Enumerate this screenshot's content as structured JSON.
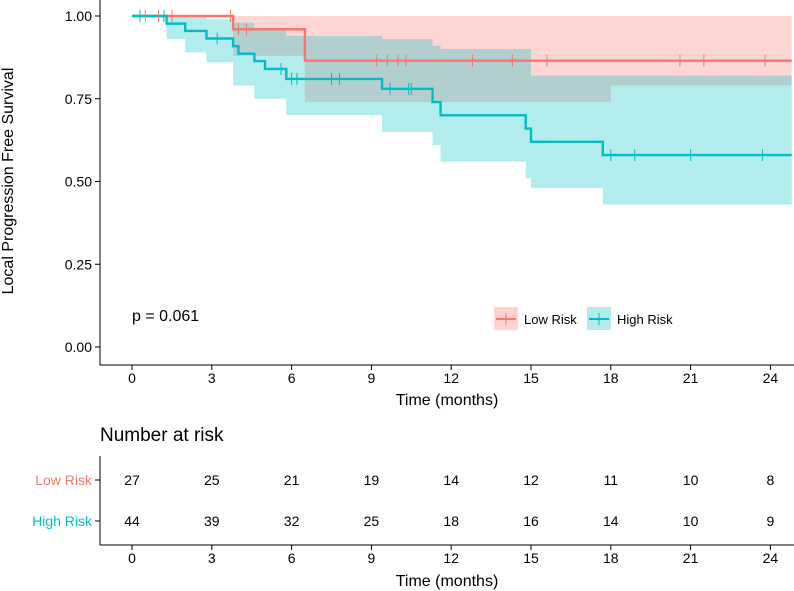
{
  "chart_data": [
    {
      "type": "line",
      "subtype": "kaplan-meier",
      "title": "",
      "xlabel": "Time (months)",
      "ylabel": "Local Progression Free Survival",
      "xlim": [
        0,
        24
      ],
      "ylim": [
        0,
        1
      ],
      "xticks": [
        "0",
        "3",
        "6",
        "9",
        "12",
        "15",
        "18",
        "21",
        "24"
      ],
      "yticks": [
        "0.00",
        "0.25",
        "0.50",
        "0.75",
        "1.00"
      ],
      "grid": false,
      "legend_position": "bottom-right",
      "annotation": "p = 0.061",
      "series": [
        {
          "name": "Low Risk",
          "color": "#F8766D",
          "band_color": "#FFD1CF",
          "steps": [
            [
              0,
              1.0
            ],
            [
              3.8,
              0.96
            ],
            [
              6.5,
              0.865
            ],
            [
              24.8,
              0.865
            ]
          ],
          "ci_upper": [
            [
              0,
              1.0
            ],
            [
              24.8,
              1.0
            ]
          ],
          "ci_lower": [
            [
              0,
              1.0
            ],
            [
              3.8,
              0.88
            ],
            [
              6.5,
              0.74
            ],
            [
              15,
              0.74
            ],
            [
              18,
              0.79
            ],
            [
              24.8,
              0.79
            ]
          ],
          "censor_times": [
            0.5,
            1.0,
            1.5,
            3.7,
            4.0,
            4.3,
            9.2,
            9.6,
            10.0,
            10.3,
            12.8,
            14.3,
            15.6,
            20.6,
            21.5,
            23.8
          ]
        },
        {
          "name": "High Risk",
          "color": "#00BFC4",
          "band_color": "#B2EBEC",
          "steps": [
            [
              0,
              1.0
            ],
            [
              1.3,
              0.977
            ],
            [
              2.0,
              0.955
            ],
            [
              2.8,
              0.932
            ],
            [
              3.8,
              0.909
            ],
            [
              4.0,
              0.886
            ],
            [
              4.6,
              0.864
            ],
            [
              5.0,
              0.84
            ],
            [
              5.8,
              0.81
            ],
            [
              9.4,
              0.78
            ],
            [
              11.3,
              0.74
            ],
            [
              11.6,
              0.7
            ],
            [
              14.8,
              0.66
            ],
            [
              15.0,
              0.62
            ],
            [
              17.7,
              0.58
            ],
            [
              24.8,
              0.58
            ]
          ],
          "ci_upper": [
            [
              0,
              1.0
            ],
            [
              2.0,
              1.0
            ],
            [
              2.8,
              0.99
            ],
            [
              3.8,
              0.98
            ],
            [
              4.6,
              0.96
            ],
            [
              5.8,
              0.94
            ],
            [
              9.4,
              0.93
            ],
            [
              11.3,
              0.91
            ],
            [
              11.6,
              0.9
            ],
            [
              15.0,
              0.82
            ],
            [
              24.8,
              0.82
            ]
          ],
          "ci_lower": [
            [
              0,
              1.0
            ],
            [
              1.3,
              0.93
            ],
            [
              2.0,
              0.89
            ],
            [
              2.8,
              0.86
            ],
            [
              3.8,
              0.79
            ],
            [
              4.6,
              0.75
            ],
            [
              5.8,
              0.7
            ],
            [
              9.4,
              0.65
            ],
            [
              11.3,
              0.61
            ],
            [
              11.6,
              0.56
            ],
            [
              14.8,
              0.51
            ],
            [
              15.0,
              0.48
            ],
            [
              17.7,
              0.43
            ],
            [
              24.8,
              0.43
            ]
          ],
          "censor_times": [
            0.3,
            1.2,
            3.2,
            5.6,
            6.0,
            6.2,
            7.5,
            7.8,
            9.7,
            10.4,
            10.5,
            18.0,
            18.9,
            21.0,
            23.7
          ]
        }
      ]
    },
    {
      "type": "table",
      "title": "Number at risk",
      "xlabel": "Time (months)",
      "xticks": [
        "0",
        "3",
        "6",
        "9",
        "12",
        "15",
        "18",
        "21",
        "24"
      ],
      "rows": [
        {
          "name": "Low Risk",
          "color": "#F8766D",
          "values": [
            "27",
            "25",
            "21",
            "19",
            "14",
            "12",
            "11",
            "10",
            "8"
          ]
        },
        {
          "name": "High Risk",
          "color": "#00BFC4",
          "values": [
            "44",
            "39",
            "32",
            "25",
            "18",
            "16",
            "14",
            "10",
            "9"
          ]
        }
      ]
    }
  ]
}
